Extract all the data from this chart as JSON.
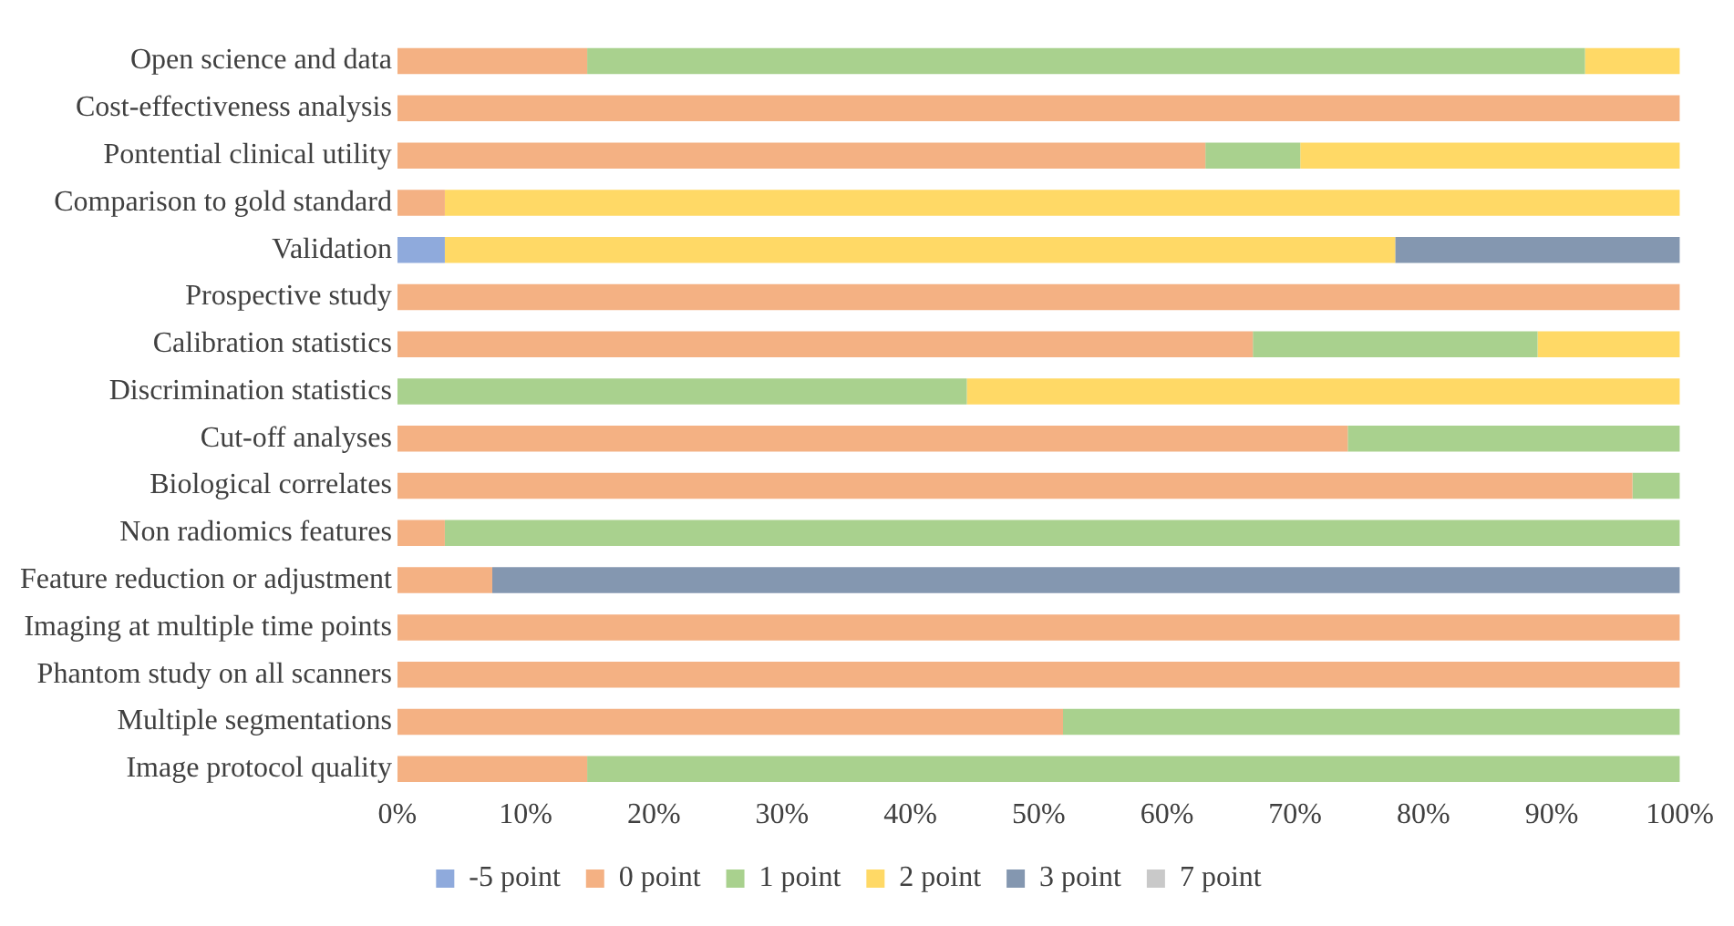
{
  "chart_data": {
    "type": "bar",
    "orientation": "horizontal",
    "stacked": true,
    "legend": "bottom",
    "grid": false,
    "categories": [
      "Open science and data",
      "Cost-effectiveness analysis",
      "Pontential clinical utility",
      "Comparison to gold standard",
      "Validation",
      "Prospective study",
      "Calibration statistics",
      "Discrimination statistics",
      "Cut-off analyses",
      "Biological correlates",
      "Non radiomics features",
      "Feature reduction or adjustment",
      "Imaging at multiple time points",
      "Phantom study on all scanners",
      "Multiple segmentations",
      "Image protocol quality"
    ],
    "xlim": [
      0,
      100
    ],
    "xticks": [
      {
        "value": 0,
        "label": "0%"
      },
      {
        "value": 10,
        "label": "10%"
      },
      {
        "value": 20,
        "label": "20%"
      },
      {
        "value": 30,
        "label": "30%"
      },
      {
        "value": 40,
        "label": "40%"
      },
      {
        "value": 50,
        "label": "50%"
      },
      {
        "value": 60,
        "label": "60%"
      },
      {
        "value": 70,
        "label": "70%"
      },
      {
        "value": 80,
        "label": "80%"
      },
      {
        "value": 90,
        "label": "90%"
      },
      {
        "value": 100,
        "label": "100%"
      }
    ],
    "series": [
      {
        "name": "-5 point",
        "color": "#8faadc",
        "values": [
          0,
          0,
          0,
          0,
          3.7,
          0,
          0,
          0,
          0,
          0,
          0,
          0,
          0,
          0,
          0,
          0
        ]
      },
      {
        "name": "0 point",
        "color": "#f4b183",
        "values": [
          14.8,
          100,
          63,
          3.7,
          0,
          100,
          66.7,
          0,
          74.1,
          96.3,
          3.7,
          7.4,
          100,
          100,
          51.9,
          14.8
        ]
      },
      {
        "name": "1 point",
        "color": "#a9d18e",
        "values": [
          77.8,
          0,
          7.4,
          0,
          0,
          0,
          22.2,
          44.4,
          25.9,
          3.7,
          96.3,
          0,
          0,
          0,
          48.1,
          85.2
        ]
      },
      {
        "name": "2 point",
        "color": "#ffd966",
        "values": [
          7.4,
          0,
          29.6,
          96.3,
          74.1,
          0,
          11.1,
          55.6,
          0,
          0,
          0,
          0,
          0,
          0,
          0,
          0
        ]
      },
      {
        "name": "3 point",
        "color": "#8497b0",
        "values": [
          0,
          0,
          0,
          0,
          22.2,
          0,
          0,
          0,
          0,
          0,
          0,
          92.6,
          0,
          0,
          0,
          0
        ]
      },
      {
        "name": "7 point",
        "color": "#c9c9c9",
        "values": [
          0,
          0,
          0,
          0,
          0,
          0,
          0,
          0,
          0,
          0,
          0,
          0,
          0,
          0,
          0,
          0
        ]
      }
    ]
  }
}
